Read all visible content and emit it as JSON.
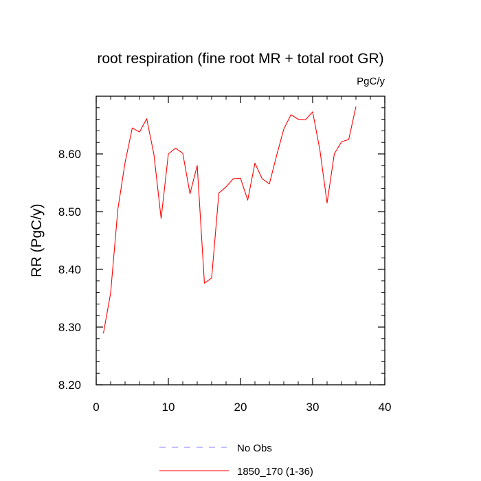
{
  "chart_data": {
    "type": "line",
    "title": "root respiration (fine root MR + total root GR)",
    "units": "PgC/y",
    "xlabel": "",
    "ylabel": "RR  (PgC/y)",
    "xlim": [
      0,
      40
    ],
    "ylim": [
      8.2,
      8.7
    ],
    "xticks": [
      0,
      10,
      20,
      30,
      40
    ],
    "xtick_labels": [
      "0",
      "10",
      "20",
      "30",
      "40"
    ],
    "yticks": [
      8.2,
      8.3,
      8.4,
      8.5,
      8.6
    ],
    "ytick_labels": [
      "8.20",
      "8.30",
      "8.40",
      "8.50",
      "8.60"
    ],
    "series": [
      {
        "name": "1850_170 (1-36)",
        "color": "#ff0000",
        "x": [
          1,
          2,
          3,
          4,
          5,
          6,
          7,
          8,
          9,
          10,
          11,
          12,
          13,
          14,
          15,
          16,
          17,
          18,
          19,
          20,
          21,
          22,
          23,
          24,
          25,
          26,
          27,
          28,
          29,
          30,
          31,
          32,
          33,
          34,
          35,
          36
        ],
        "values": [
          8.289,
          8.359,
          8.504,
          8.585,
          8.645,
          8.638,
          8.661,
          8.599,
          8.488,
          8.6,
          8.61,
          8.601,
          8.531,
          8.58,
          8.376,
          8.385,
          8.532,
          8.543,
          8.557,
          8.558,
          8.52,
          8.584,
          8.557,
          8.548,
          8.597,
          8.643,
          8.668,
          8.66,
          8.659,
          8.673,
          8.607,
          8.515,
          8.6,
          8.621,
          8.625,
          8.682
        ]
      }
    ],
    "legend": [
      {
        "label": "No Obs",
        "color": "#8080ff",
        "style": "dashed"
      },
      {
        "label": "1850_170 (1-36)",
        "color": "#ff0000",
        "style": "solid"
      }
    ],
    "legend_position": "bottom-center",
    "grid": false
  }
}
